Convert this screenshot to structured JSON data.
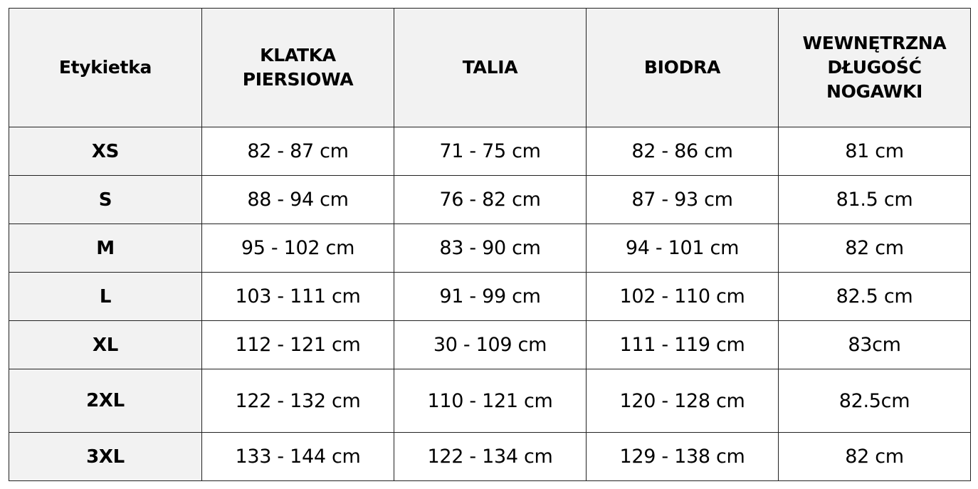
{
  "table": {
    "headers": [
      [
        "Etykietka"
      ],
      [
        "KLATKA",
        "PIERSIOWA"
      ],
      [
        "TALIA"
      ],
      [
        "BIODRA"
      ],
      [
        "WEWNĘTRZNA",
        "DŁUGOŚĆ",
        "NOGAWKI"
      ]
    ],
    "rows": [
      {
        "label": "XS",
        "cells": [
          "82 - 87 cm",
          "71 - 75 cm",
          "82 - 86 cm",
          "81 cm"
        ]
      },
      {
        "label": "S",
        "cells": [
          "88 - 94 cm",
          "76 - 82 cm",
          "87 - 93 cm",
          "81.5 cm"
        ]
      },
      {
        "label": "M",
        "cells": [
          "95 - 102 cm",
          "83 - 90 cm",
          "94 - 101 cm",
          "82 cm"
        ]
      },
      {
        "label": "L",
        "cells": [
          "103 - 111 cm",
          "91 - 99 cm",
          "102 - 110 cm",
          "82.5 cm"
        ]
      },
      {
        "label": "XL",
        "cells": [
          "112 - 121 cm",
          "30 - 109 cm",
          "111 - 119 cm",
          "83cm"
        ]
      },
      {
        "label": "2XL",
        "cells": [
          "122 - 132 cm",
          "110 - 121 cm",
          "120 - 128 cm",
          "82.5cm"
        ]
      },
      {
        "label": "3XL",
        "cells": [
          "133 - 144 cm",
          "122 - 134 cm",
          "129 - 138 cm",
          "82 cm"
        ]
      }
    ]
  }
}
